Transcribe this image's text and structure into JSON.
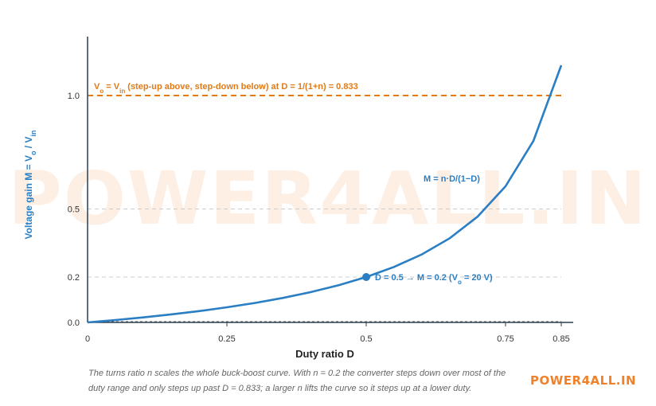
{
  "watermark": "POWER4ALL.IN",
  "brand": "POWER4ALL.IN",
  "caption": "The turns ratio n scales the whole buck-boost curve. With n = 0.2 the converter steps down over most of the duty range and only steps up past D = 0.833; a larger n lifts the curve so it steps up at a lower duty.",
  "colors": {
    "curve": "#2a7ec4",
    "threshold": "#e07b18",
    "axis": "#2c3e50",
    "grid": "#cccccc"
  },
  "chart_data": {
    "type": "line",
    "xlabel": "Duty ratio D",
    "ylabel": "Voltage gain M = V_o / V_in",
    "ylabel_parts": {
      "pre": "Voltage gain M = V",
      "sub1": "o",
      "mid": " / V",
      "sub2": "in"
    },
    "xlim": [
      0,
      0.85
    ],
    "ylim": [
      0,
      1.1
    ],
    "x_ticks": [
      "0",
      "0.25",
      "0.5",
      "0.75",
      "0.85"
    ],
    "x_tick_values": [
      0,
      0.25,
      0.5,
      0.75,
      0.85
    ],
    "y_ticks": [
      "0.0",
      "0.2",
      "0.5",
      "1.0"
    ],
    "y_tick_values": [
      0.0,
      0.2,
      0.5,
      1.0
    ],
    "grid": "horizontal dashed at y ticks",
    "series": [
      {
        "name": "M = n·D/(1−D)",
        "x": [
          0,
          0.05,
          0.1,
          0.15,
          0.2,
          0.25,
          0.3,
          0.35,
          0.4,
          0.45,
          0.5,
          0.55,
          0.6,
          0.65,
          0.7,
          0.75,
          0.8,
          0.85
        ],
        "y": [
          0,
          0.0105,
          0.0222,
          0.0353,
          0.05,
          0.0667,
          0.0857,
          0.1077,
          0.1333,
          0.1636,
          0.2,
          0.2444,
          0.3,
          0.3714,
          0.4667,
          0.6,
          0.8,
          1.1333
        ]
      }
    ],
    "reference_line": {
      "y": 1.0,
      "label_parts": {
        "pre": "V",
        "sub1": "o",
        "mid": " = V",
        "sub2": "in",
        "post": " (step-up above, step-down below) at D = 1/(1+n) = 0.833"
      }
    },
    "highlight_point": {
      "x": 0.5,
      "y": 0.2,
      "label_parts": {
        "pre": "D = 0.5 → M = 0.2 (V",
        "sub": "o",
        "post": " = 20 V)"
      }
    },
    "curve_label": "M = n·D/(1−D)"
  }
}
